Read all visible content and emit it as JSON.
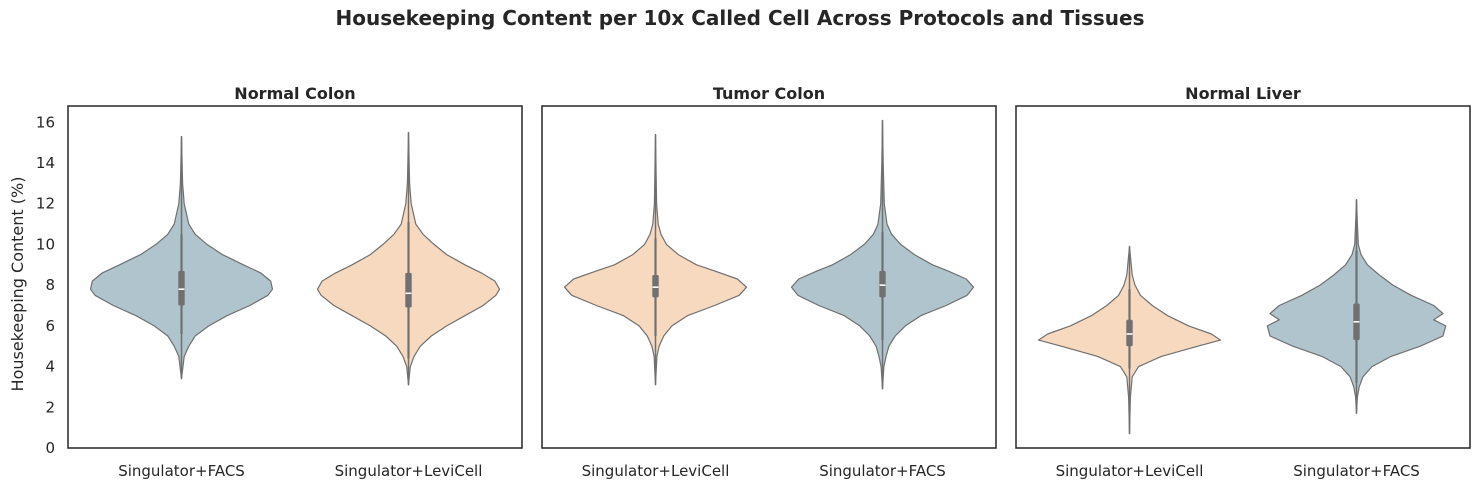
{
  "figure": {
    "title": "Housekeeping Content per 10x Called Cell Across Protocols and Tissues"
  },
  "colors": {
    "Singulator+FACS": "#afc4cc",
    "Singulator+LeviCell": "#f7d9c0",
    "violin_edge": "#707070",
    "box": "#707070",
    "median": "#ffffff",
    "axes": "#262626"
  },
  "chart_data": {
    "type": "violin",
    "ylabel": "Housekeeping Content (%)",
    "ylim": [
      0,
      16.8
    ],
    "yticks": [
      0,
      2,
      4,
      6,
      8,
      10,
      12,
      14,
      16
    ],
    "shared_y": true,
    "panels": [
      {
        "title": "Normal Colon",
        "categories": [
          "Singulator+FACS",
          "Singulator+LeviCell"
        ],
        "violins": [
          {
            "category": "Singulator+FACS",
            "min": 3.4,
            "max": 15.3,
            "q1": 7.0,
            "median": 7.8,
            "q3": 8.7,
            "whisker_low": 5.6,
            "whisker_high": 10.5,
            "density": [
              [
                3.4,
                0.0
              ],
              [
                4.5,
                0.03
              ],
              [
                5.0,
                0.08
              ],
              [
                5.5,
                0.15
              ],
              [
                6.0,
                0.3
              ],
              [
                6.5,
                0.5
              ],
              [
                7.0,
                0.75
              ],
              [
                7.5,
                0.95
              ],
              [
                7.8,
                1.0
              ],
              [
                8.2,
                0.98
              ],
              [
                8.6,
                0.87
              ],
              [
                9.0,
                0.68
              ],
              [
                9.5,
                0.45
              ],
              [
                10.0,
                0.28
              ],
              [
                10.5,
                0.15
              ],
              [
                11.0,
                0.08
              ],
              [
                12.0,
                0.03
              ],
              [
                13.0,
                0.012
              ],
              [
                15.3,
                0.0
              ]
            ]
          },
          {
            "category": "Singulator+LeviCell",
            "min": 3.1,
            "max": 15.5,
            "q1": 6.9,
            "median": 7.6,
            "q3": 8.6,
            "whisker_low": 4.4,
            "whisker_high": 11.1,
            "density": [
              [
                3.1,
                0.0
              ],
              [
                4.0,
                0.02
              ],
              [
                4.5,
                0.06
              ],
              [
                5.0,
                0.13
              ],
              [
                5.5,
                0.25
              ],
              [
                6.0,
                0.42
              ],
              [
                6.5,
                0.62
              ],
              [
                7.0,
                0.82
              ],
              [
                7.5,
                0.96
              ],
              [
                7.8,
                1.0
              ],
              [
                8.2,
                0.95
              ],
              [
                8.6,
                0.8
              ],
              [
                9.0,
                0.62
              ],
              [
                9.5,
                0.42
              ],
              [
                10.0,
                0.28
              ],
              [
                10.5,
                0.16
              ],
              [
                11.0,
                0.08
              ],
              [
                12.0,
                0.03
              ],
              [
                13.0,
                0.012
              ],
              [
                15.5,
                0.0
              ]
            ]
          }
        ]
      },
      {
        "title": "Tumor Colon",
        "categories": [
          "Singulator+LeviCell",
          "Singulator+FACS"
        ],
        "violins": [
          {
            "category": "Singulator+LeviCell",
            "min": 3.1,
            "max": 15.4,
            "q1": 7.4,
            "median": 7.9,
            "q3": 8.5,
            "whisker_low": 5.5,
            "whisker_high": 10.3,
            "density": [
              [
                3.1,
                0.0
              ],
              [
                4.5,
                0.015
              ],
              [
                5.0,
                0.04
              ],
              [
                5.5,
                0.09
              ],
              [
                6.0,
                0.18
              ],
              [
                6.5,
                0.35
              ],
              [
                7.0,
                0.65
              ],
              [
                7.5,
                0.92
              ],
              [
                7.9,
                1.0
              ],
              [
                8.3,
                0.9
              ],
              [
                8.7,
                0.65
              ],
              [
                9.0,
                0.45
              ],
              [
                9.5,
                0.25
              ],
              [
                10.0,
                0.12
              ],
              [
                10.5,
                0.06
              ],
              [
                11.0,
                0.03
              ],
              [
                12.0,
                0.012
              ],
              [
                15.4,
                0.0
              ]
            ]
          },
          {
            "category": "Singulator+FACS",
            "min": 2.9,
            "max": 16.1,
            "q1": 7.4,
            "median": 8.0,
            "q3": 8.7,
            "whisker_low": 5.3,
            "whisker_high": 10.6,
            "density": [
              [
                2.9,
                0.0
              ],
              [
                4.0,
                0.015
              ],
              [
                4.5,
                0.04
              ],
              [
                5.0,
                0.07
              ],
              [
                5.5,
                0.14
              ],
              [
                6.0,
                0.25
              ],
              [
                6.5,
                0.42
              ],
              [
                7.0,
                0.7
              ],
              [
                7.5,
                0.93
              ],
              [
                7.9,
                1.0
              ],
              [
                8.3,
                0.92
              ],
              [
                8.7,
                0.72
              ],
              [
                9.0,
                0.55
              ],
              [
                9.5,
                0.35
              ],
              [
                10.0,
                0.2
              ],
              [
                10.5,
                0.1
              ],
              [
                11.0,
                0.05
              ],
              [
                12.0,
                0.02
              ],
              [
                14.0,
                0.008
              ],
              [
                16.1,
                0.0
              ]
            ]
          }
        ]
      },
      {
        "title": "Normal Liver",
        "categories": [
          "Singulator+LeviCell",
          "Singulator+FACS"
        ],
        "violins": [
          {
            "category": "Singulator+LeviCell",
            "min": 0.7,
            "max": 9.9,
            "q1": 5.0,
            "median": 5.6,
            "q3": 6.3,
            "whisker_low": 3.9,
            "whisker_high": 7.8,
            "density": [
              [
                0.7,
                0.0
              ],
              [
                2.5,
                0.01
              ],
              [
                3.5,
                0.03
              ],
              [
                4.0,
                0.1
              ],
              [
                4.5,
                0.35
              ],
              [
                5.0,
                0.75
              ],
              [
                5.3,
                1.0
              ],
              [
                5.6,
                0.9
              ],
              [
                6.0,
                0.65
              ],
              [
                6.5,
                0.42
              ],
              [
                7.0,
                0.25
              ],
              [
                7.5,
                0.12
              ],
              [
                8.0,
                0.06
              ],
              [
                8.5,
                0.03
              ],
              [
                9.9,
                0.0
              ]
            ]
          },
          {
            "category": "Singulator+FACS",
            "min": 1.7,
            "max": 12.2,
            "q1": 5.3,
            "median": 6.2,
            "q3": 7.1,
            "whisker_low": 3.2,
            "whisker_high": 9.7,
            "density": [
              [
                1.7,
                0.0
              ],
              [
                2.5,
                0.01
              ],
              [
                3.0,
                0.03
              ],
              [
                3.5,
                0.07
              ],
              [
                4.0,
                0.17
              ],
              [
                4.5,
                0.38
              ],
              [
                5.0,
                0.7
              ],
              [
                5.5,
                0.95
              ],
              [
                6.0,
                0.98
              ],
              [
                6.3,
                0.85
              ],
              [
                6.6,
                0.95
              ],
              [
                7.0,
                0.85
              ],
              [
                7.5,
                0.6
              ],
              [
                8.0,
                0.4
              ],
              [
                8.5,
                0.25
              ],
              [
                9.0,
                0.12
              ],
              [
                9.5,
                0.05
              ],
              [
                10.0,
                0.02
              ],
              [
                11.0,
                0.01
              ],
              [
                12.2,
                0.0
              ]
            ]
          }
        ]
      }
    ]
  }
}
